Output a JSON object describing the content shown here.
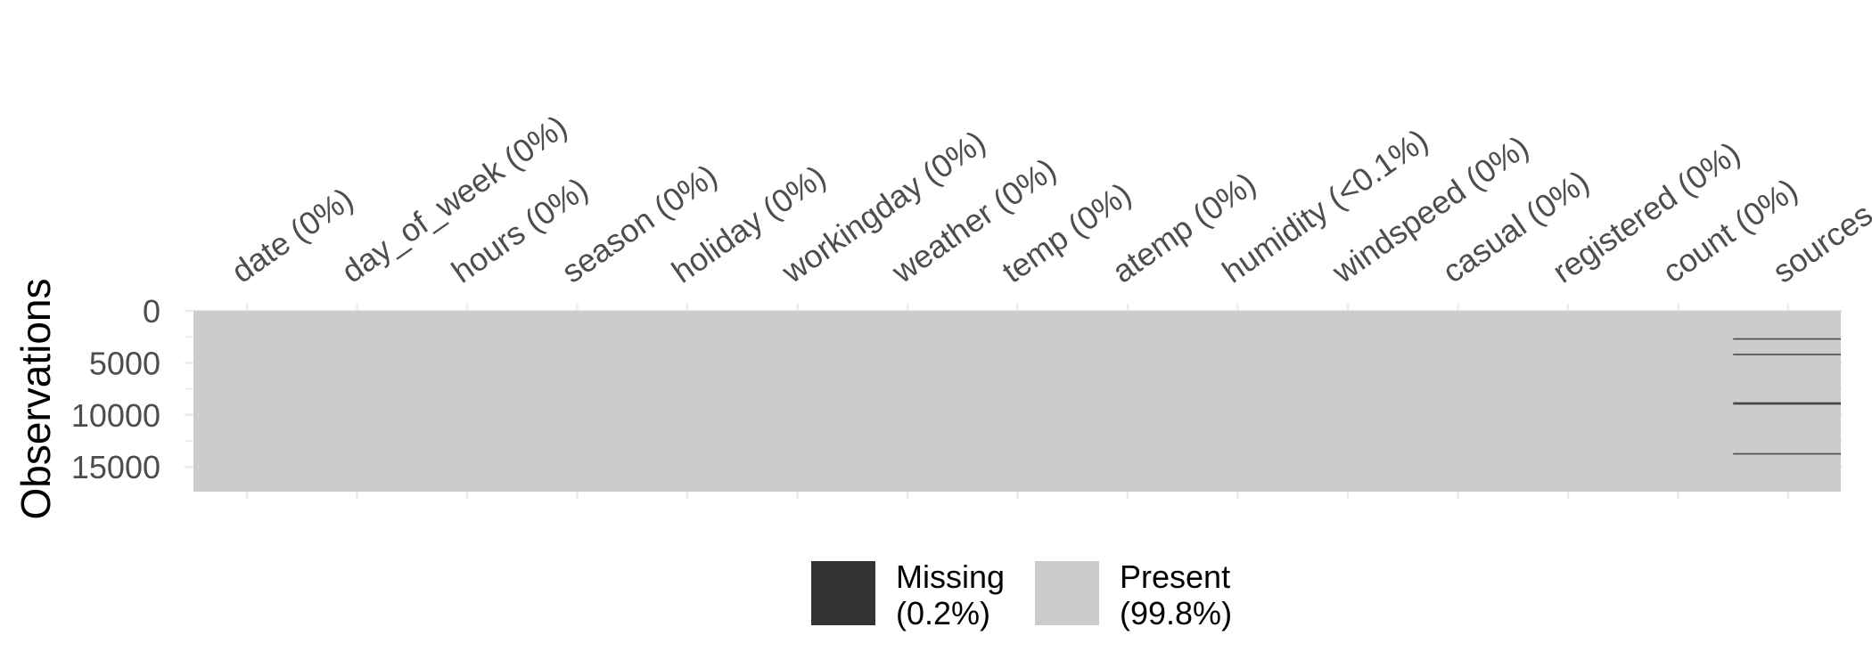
{
  "chart_data": {
    "type": "heatmap",
    "title": "",
    "xlabel": "",
    "ylabel": "Observations",
    "ylim": [
      0,
      17379
    ],
    "y_ticks": [
      "0",
      "5000",
      "10000",
      "15000"
    ],
    "y_tick_values": [
      0,
      5000,
      10000,
      15000
    ],
    "columns": [
      {
        "name": "date",
        "label": "date (0%)"
      },
      {
        "name": "day_of_week",
        "label": "day_of_week (0%)"
      },
      {
        "name": "hours",
        "label": "hours (0%)"
      },
      {
        "name": "season",
        "label": "season (0%)"
      },
      {
        "name": "holiday",
        "label": "holiday (0%)"
      },
      {
        "name": "workingday",
        "label": "workingday (0%)"
      },
      {
        "name": "weather",
        "label": "weather (0%)"
      },
      {
        "name": "temp",
        "label": "temp (0%)"
      },
      {
        "name": "atemp",
        "label": "atemp (0%)"
      },
      {
        "name": "humidity",
        "label": "humidity (<0.1%)"
      },
      {
        "name": "windspeed",
        "label": "windspeed (0%)"
      },
      {
        "name": "casual",
        "label": "casual (0%)"
      },
      {
        "name": "registered",
        "label": "registered (0%)"
      },
      {
        "name": "count",
        "label": "count (0%)"
      },
      {
        "name": "sources",
        "label": "sources ("
      }
    ],
    "missing_rows": [
      {
        "column": "sources",
        "observations": [
          2700,
          4200,
          8850,
          8950,
          13750
        ]
      }
    ],
    "legend": [
      {
        "label": "Missing",
        "pct": "(0.2%)",
        "color": "#333333"
      },
      {
        "label": "Present",
        "pct": "(99.8%)",
        "color": "#cccccc"
      }
    ],
    "legend_position": "bottom",
    "grid": true
  },
  "colors": {
    "missing": "#333333",
    "present": "#cccccc",
    "grid": "#ebebeb",
    "text": "#4d4d4d"
  }
}
